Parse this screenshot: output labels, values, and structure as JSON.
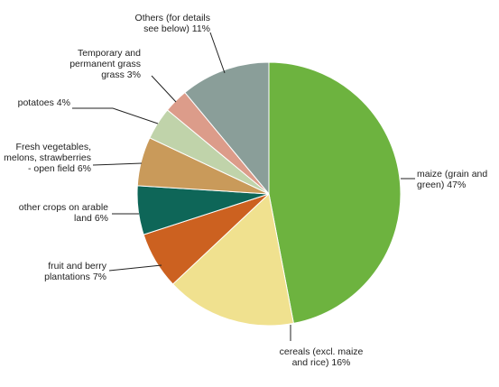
{
  "chart_data": {
    "type": "pie",
    "slices": [
      {
        "label_lines": [
          "maize (grain and",
          "green) 47%"
        ],
        "value": 47,
        "color": "#6db33f"
      },
      {
        "label_lines": [
          "cereals (excl. maize",
          "and rice) 16%"
        ],
        "value": 16,
        "color": "#f0e18f"
      },
      {
        "label_lines": [
          "fruit and berry",
          "plantations 7%"
        ],
        "value": 7,
        "color": "#cc6120"
      },
      {
        "label_lines": [
          "other crops on arable",
          "land 6%"
        ],
        "value": 6,
        "color": "#0e6658"
      },
      {
        "label_lines": [
          "Fresh vegetables,",
          "melons, strawberries",
          "- open field 6%"
        ],
        "value": 6,
        "color": "#c99a5a"
      },
      {
        "label_lines": [
          "potatoes 4%"
        ],
        "value": 4,
        "color": "#c0d3aa"
      },
      {
        "label_lines": [
          "Temporary and",
          "permanent grass",
          "grass 3%"
        ],
        "value": 3,
        "color": "#dc9c8a"
      },
      {
        "label_lines": [
          "Others (for details",
          "see below)  11%"
        ],
        "value": 11,
        "color": "#8a9e99"
      }
    ]
  }
}
